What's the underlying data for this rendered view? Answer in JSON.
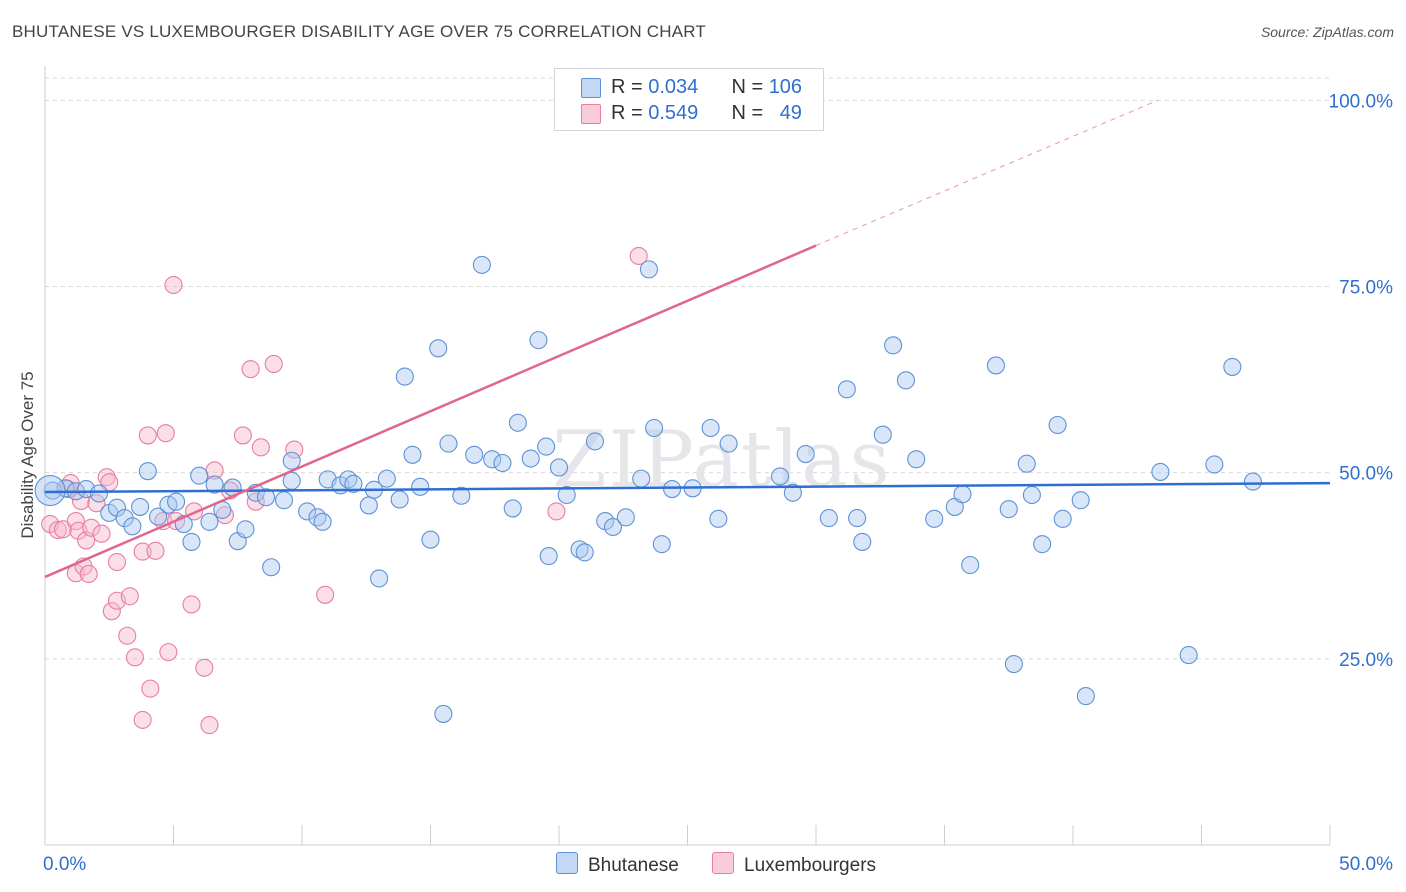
{
  "title": "BHUTANESE VS LUXEMBOURGER DISABILITY AGE OVER 75 CORRELATION CHART",
  "source": "Source: ZipAtlas.com",
  "watermark": "ZIPatlas",
  "legend_top": {
    "rows": [
      {
        "r_label": "R = ",
        "r_value": "0.034",
        "n_label": "N = ",
        "n_value": "106"
      },
      {
        "r_label": "R = ",
        "r_value": "0.549",
        "n_label": "N = ",
        "n_value": "49"
      }
    ]
  },
  "legend_bottom": {
    "series1": "Bhutanese",
    "series2": "Luxembourgers"
  },
  "colors": {
    "blue_fill": "#a9c8f0",
    "blue_stroke": "#5f92d6",
    "blue_line": "#2e6fd0",
    "pink_fill": "#f7b9cc",
    "pink_stroke": "#e87ea0",
    "pink_line": "#e0668f",
    "axis_label": "#2f6fd0",
    "grid": "#d8d8d8"
  },
  "chart_data": {
    "type": "scatter",
    "title": "BHUTANESE VS LUXEMBOURGER DISABILITY AGE OVER 75 CORRELATION CHART",
    "xlabel": "",
    "ylabel": "Disability Age Over 75",
    "xlim": [
      0,
      50
    ],
    "ylim": [
      0,
      103
    ],
    "x_tick_labels": [
      "0.0%",
      "50.0%"
    ],
    "y_tick_values": [
      25,
      50,
      75,
      100
    ],
    "y_tick_labels": [
      "25.0%",
      "50.0%",
      "75.0%",
      "100.0%"
    ],
    "grid": "horizontal dashed",
    "legend_placement": "top-center and bottom",
    "series": [
      {
        "name": "Bhutanese",
        "r": 0.034,
        "n": 106,
        "trend": [
          [
            0,
            47.4
          ],
          [
            50,
            48.6
          ]
        ],
        "points": [
          [
            0.3,
            47.6
          ],
          [
            0.8,
            47.9
          ],
          [
            1.2,
            47.5
          ],
          [
            1.6,
            47.8
          ],
          [
            2.1,
            47.2
          ],
          [
            2.5,
            44.6
          ],
          [
            2.8,
            45.3
          ],
          [
            3.1,
            43.9
          ],
          [
            3.4,
            42.8
          ],
          [
            3.7,
            45.4
          ],
          [
            4.0,
            50.2
          ],
          [
            4.4,
            44.1
          ],
          [
            4.8,
            45.7
          ],
          [
            5.1,
            46.1
          ],
          [
            5.4,
            43.1
          ],
          [
            5.7,
            40.7
          ],
          [
            6.0,
            49.6
          ],
          [
            6.4,
            43.4
          ],
          [
            6.6,
            48.4
          ],
          [
            6.9,
            45.0
          ],
          [
            7.3,
            48.0
          ],
          [
            7.5,
            40.8
          ],
          [
            7.8,
            42.4
          ],
          [
            8.2,
            47.3
          ],
          [
            8.6,
            46.7
          ],
          [
            8.8,
            37.3
          ],
          [
            9.3,
            46.3
          ],
          [
            9.6,
            48.9
          ],
          [
            9.6,
            51.6
          ],
          [
            10.2,
            44.8
          ],
          [
            10.6,
            44.0
          ],
          [
            10.8,
            43.4
          ],
          [
            11.0,
            49.1
          ],
          [
            11.5,
            48.3
          ],
          [
            11.8,
            49.1
          ],
          [
            12.0,
            48.5
          ],
          [
            12.6,
            45.6
          ],
          [
            12.8,
            47.7
          ],
          [
            13.0,
            35.8
          ],
          [
            13.3,
            49.2
          ],
          [
            13.8,
            46.4
          ],
          [
            14.0,
            62.9
          ],
          [
            14.3,
            52.4
          ],
          [
            14.6,
            48.1
          ],
          [
            15.0,
            41.0
          ],
          [
            15.3,
            66.7
          ],
          [
            15.5,
            17.6
          ],
          [
            15.7,
            53.9
          ],
          [
            16.2,
            46.9
          ],
          [
            16.7,
            52.4
          ],
          [
            17.0,
            77.9
          ],
          [
            17.4,
            51.8
          ],
          [
            17.8,
            51.3
          ],
          [
            18.2,
            45.2
          ],
          [
            18.4,
            56.7
          ],
          [
            18.9,
            51.9
          ],
          [
            19.2,
            67.8
          ],
          [
            19.5,
            53.5
          ],
          [
            19.6,
            38.8
          ],
          [
            20.0,
            50.7
          ],
          [
            20.3,
            47.0
          ],
          [
            20.8,
            39.7
          ],
          [
            21.0,
            39.3
          ],
          [
            21.4,
            54.2
          ],
          [
            21.8,
            43.5
          ],
          [
            22.1,
            42.7
          ],
          [
            22.6,
            44.0
          ],
          [
            23.2,
            49.2
          ],
          [
            23.5,
            77.3
          ],
          [
            23.7,
            56.0
          ],
          [
            24.0,
            40.4
          ],
          [
            24.4,
            47.8
          ],
          [
            25.2,
            47.9
          ],
          [
            25.9,
            56.0
          ],
          [
            26.2,
            43.8
          ],
          [
            26.6,
            53.9
          ],
          [
            28.6,
            49.5
          ],
          [
            29.1,
            47.3
          ],
          [
            29.6,
            52.5
          ],
          [
            30.5,
            43.9
          ],
          [
            31.2,
            61.2
          ],
          [
            31.6,
            43.9
          ],
          [
            31.8,
            40.7
          ],
          [
            32.6,
            55.1
          ],
          [
            33.0,
            67.1
          ],
          [
            33.5,
            62.4
          ],
          [
            33.9,
            51.8
          ],
          [
            34.6,
            43.8
          ],
          [
            35.4,
            45.4
          ],
          [
            35.7,
            47.1
          ],
          [
            36.0,
            37.6
          ],
          [
            37.0,
            64.4
          ],
          [
            37.5,
            45.1
          ],
          [
            37.7,
            24.3
          ],
          [
            38.2,
            51.2
          ],
          [
            38.4,
            47.0
          ],
          [
            38.8,
            40.4
          ],
          [
            39.4,
            56.4
          ],
          [
            39.6,
            43.8
          ],
          [
            40.3,
            46.3
          ],
          [
            40.5,
            20.0
          ],
          [
            43.4,
            50.1
          ],
          [
            44.5,
            25.5
          ],
          [
            45.5,
            51.1
          ],
          [
            46.2,
            64.2
          ],
          [
            47.0,
            48.8
          ]
        ]
      },
      {
        "name": "Luxembourgers",
        "r": 0.549,
        "n": 49,
        "trend": [
          [
            0,
            36.0
          ],
          [
            30,
            80.5
          ]
        ],
        "trend_dashed": [
          [
            30,
            80.5
          ],
          [
            43.3,
            100
          ]
        ],
        "points": [
          [
            0.2,
            43.1
          ],
          [
            0.5,
            42.3
          ],
          [
            0.7,
            42.4
          ],
          [
            0.9,
            47.8
          ],
          [
            1.0,
            48.6
          ],
          [
            1.2,
            43.5
          ],
          [
            1.2,
            36.5
          ],
          [
            1.3,
            42.2
          ],
          [
            1.4,
            46.2
          ],
          [
            1.5,
            37.4
          ],
          [
            1.6,
            40.9
          ],
          [
            1.7,
            36.4
          ],
          [
            1.8,
            42.6
          ],
          [
            2.0,
            45.9
          ],
          [
            2.2,
            41.8
          ],
          [
            2.4,
            49.4
          ],
          [
            2.5,
            48.7
          ],
          [
            2.6,
            31.4
          ],
          [
            2.8,
            32.8
          ],
          [
            2.8,
            38.0
          ],
          [
            3.2,
            28.1
          ],
          [
            3.3,
            33.4
          ],
          [
            3.5,
            25.2
          ],
          [
            3.8,
            16.8
          ],
          [
            3.8,
            39.4
          ],
          [
            4.0,
            55.0
          ],
          [
            4.1,
            21.0
          ],
          [
            4.3,
            39.5
          ],
          [
            4.6,
            43.5
          ],
          [
            4.7,
            55.3
          ],
          [
            4.8,
            25.9
          ],
          [
            5.0,
            75.2
          ],
          [
            5.1,
            43.5
          ],
          [
            5.7,
            32.3
          ],
          [
            5.8,
            44.8
          ],
          [
            6.2,
            23.8
          ],
          [
            6.4,
            16.1
          ],
          [
            6.6,
            50.3
          ],
          [
            7.0,
            44.3
          ],
          [
            7.2,
            47.6
          ],
          [
            7.7,
            55.0
          ],
          [
            8.0,
            63.9
          ],
          [
            8.2,
            46.1
          ],
          [
            8.4,
            53.4
          ],
          [
            8.9,
            64.6
          ],
          [
            9.7,
            53.1
          ],
          [
            10.9,
            33.6
          ],
          [
            19.9,
            44.8
          ],
          [
            23.1,
            79.1
          ]
        ]
      }
    ]
  }
}
